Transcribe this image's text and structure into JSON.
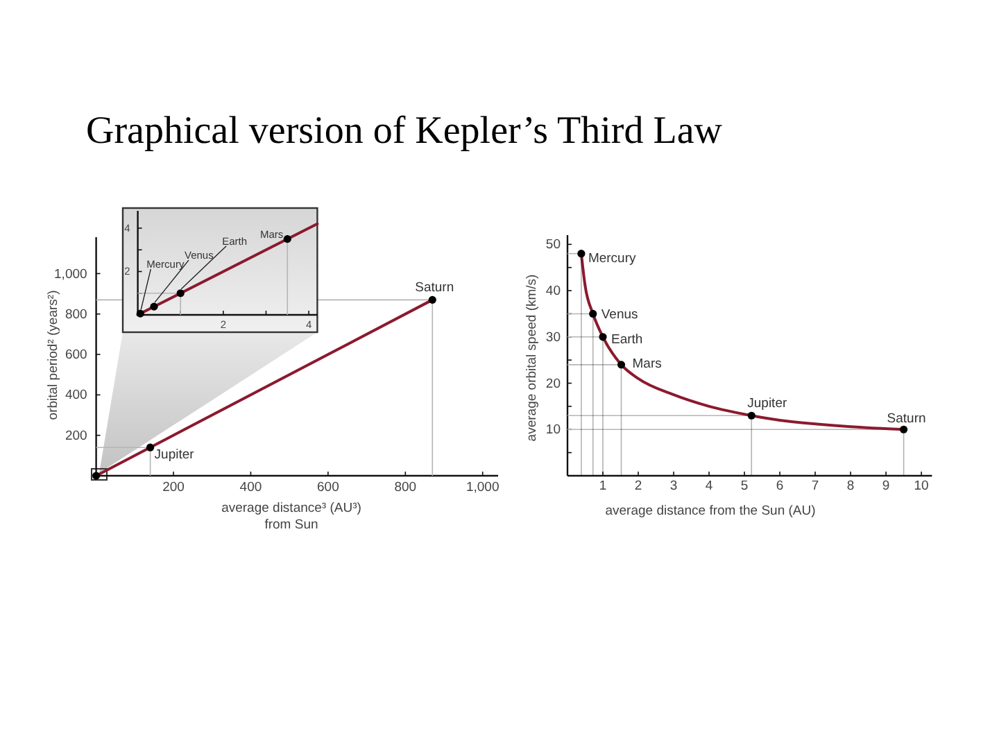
{
  "chart_data": [
    {
      "type": "scatter",
      "title": "Graphical version of Kepler’s Third Law",
      "xlabel": "average distance³ (AU³)\nfrom Sun",
      "ylabel": "orbital period² (years²)",
      "xlim": [
        0,
        1040
      ],
      "ylim": [
        0,
        1180
      ],
      "xticks": [
        200,
        400,
        600,
        800,
        {
          "value": 1000,
          "label": "1,000"
        }
      ],
      "yticks": [
        200,
        400,
        600,
        800,
        {
          "value": 1000,
          "label": "1,000"
        }
      ],
      "series": [
        {
          "type": "line",
          "marker": "none",
          "color": "#b5b5b5",
          "x": [
            0,
            140,
            140
          ],
          "values": [
            140,
            140,
            0
          ]
        },
        {
          "type": "line",
          "marker": "none",
          "color": "#b5b5b5",
          "x": [
            0,
            870,
            870
          ],
          "values": [
            870,
            870,
            0
          ]
        },
        {
          "type": "line",
          "marker": "none",
          "color": "#8b1a2e",
          "x": [
            0,
            870
          ],
          "values": [
            0,
            870
          ]
        },
        {
          "type": "scatter",
          "marker": "circle",
          "color": "#000000",
          "x": [
            0,
            140,
            870
          ],
          "values": [
            0,
            140,
            870
          ]
        }
      ],
      "annotations": [
        {
          "text": "Jupiter",
          "x": 140,
          "y": 140
        },
        {
          "text": "Saturn",
          "x": 870,
          "y": 870
        }
      ]
    },
    {
      "type": "scatter",
      "xlim": [
        0,
        4.2
      ],
      "ylim": [
        0,
        4.8
      ],
      "xticks": [
        {
          "value": 1,
          "label": null
        },
        2,
        {
          "value": 3,
          "label": null
        },
        4
      ],
      "yticks": [
        {
          "value": 1,
          "label": null
        },
        2,
        {
          "value": 3,
          "label": null
        },
        4
      ],
      "series": [
        {
          "type": "line",
          "marker": "none",
          "color": "#b5b5b5",
          "x": [
            0,
            1,
            1
          ],
          "values": [
            1,
            1,
            0
          ]
        },
        {
          "type": "line",
          "marker": "none",
          "color": "#b5b5b5",
          "x": [
            3.5,
            3.5
          ],
          "values": [
            3.5,
            0
          ]
        },
        {
          "type": "line",
          "marker": "none",
          "color": "#8b1a2e",
          "x": [
            0,
            4.2
          ],
          "values": [
            0,
            4.2
          ]
        },
        {
          "type": "scatter",
          "marker": "circle",
          "color": "#000000",
          "x": [
            0.06,
            0.38,
            1,
            3.5
          ],
          "values": [
            0.06,
            0.38,
            1,
            3.5
          ]
        }
      ],
      "annotations": [
        {
          "text": "Mercury",
          "x": 0.06,
          "y": 0.06
        },
        {
          "text": "Venus",
          "x": 0.38,
          "y": 0.38
        },
        {
          "text": "Earth",
          "x": 1,
          "y": 1
        },
        {
          "text": "Mars",
          "x": 3.5,
          "y": 3.5
        }
      ]
    },
    {
      "type": "scatter",
      "xlabel": "average distance from the Sun (AU)",
      "ylabel": "average orbital speed (km/s)",
      "xlim": [
        0,
        10.3
      ],
      "ylim": [
        0,
        52
      ],
      "xticks": [
        1,
        2,
        3,
        4,
        5,
        6,
        7,
        8,
        9,
        10
      ],
      "yticks": [
        {
          "value": 5,
          "label": null
        },
        10,
        {
          "value": 15,
          "label": null
        },
        20,
        {
          "value": 25,
          "label": null
        },
        30,
        {
          "value": 35,
          "label": null
        },
        40,
        {
          "value": 45,
          "label": null
        },
        50
      ],
      "series": [
        {
          "type": "line",
          "marker": "none",
          "color": "#b5b5b5",
          "x": [
            0,
            0.39
          ],
          "values": [
            48,
            48
          ]
        },
        {
          "type": "line",
          "marker": "none",
          "color": "#b5b5b5",
          "x": [
            0,
            0.72
          ],
          "values": [
            35,
            35
          ]
        },
        {
          "type": "line",
          "marker": "none",
          "color": "#b5b5b5",
          "x": [
            0,
            1
          ],
          "values": [
            30,
            30
          ]
        },
        {
          "type": "line",
          "marker": "none",
          "color": "#b5b5b5",
          "x": [
            0,
            1.52
          ],
          "values": [
            24,
            24
          ]
        },
        {
          "type": "line",
          "marker": "none",
          "color": "#b5b5b5",
          "x": [
            0,
            5.2
          ],
          "values": [
            13,
            13
          ]
        },
        {
          "type": "line",
          "marker": "none",
          "color": "#b5b5b5",
          "x": [
            0,
            9.5
          ],
          "values": [
            10,
            10
          ]
        },
        {
          "type": "line",
          "marker": "none",
          "color": "#8b1a2e",
          "x": [
            0.39,
            0.5,
            0.72,
            1,
            1.52,
            2,
            3,
            4,
            5.2,
            6,
            7,
            8,
            9.5
          ],
          "values": [
            48,
            41,
            35,
            30,
            24,
            21,
            17.5,
            15,
            13,
            12,
            11.2,
            10.6,
            10
          ]
        },
        {
          "type": "lollipop",
          "marker": "circle",
          "color": "#000000",
          "x": [
            0.39,
            0.72,
            1,
            1.52,
            5.2,
            9.5
          ],
          "values": [
            48,
            35,
            30,
            24,
            13,
            10
          ]
        }
      ],
      "annotations": [
        {
          "text": "Mercury",
          "x": 0.39,
          "y": 48
        },
        {
          "text": "Venus",
          "x": 0.72,
          "y": 35
        },
        {
          "text": "Earth",
          "x": 1,
          "y": 30
        },
        {
          "text": "Mars",
          "x": 1.52,
          "y": 24
        },
        {
          "text": "Jupiter",
          "x": 5.2,
          "y": 13
        },
        {
          "text": "Saturn",
          "x": 9.5,
          "y": 10
        }
      ]
    }
  ]
}
